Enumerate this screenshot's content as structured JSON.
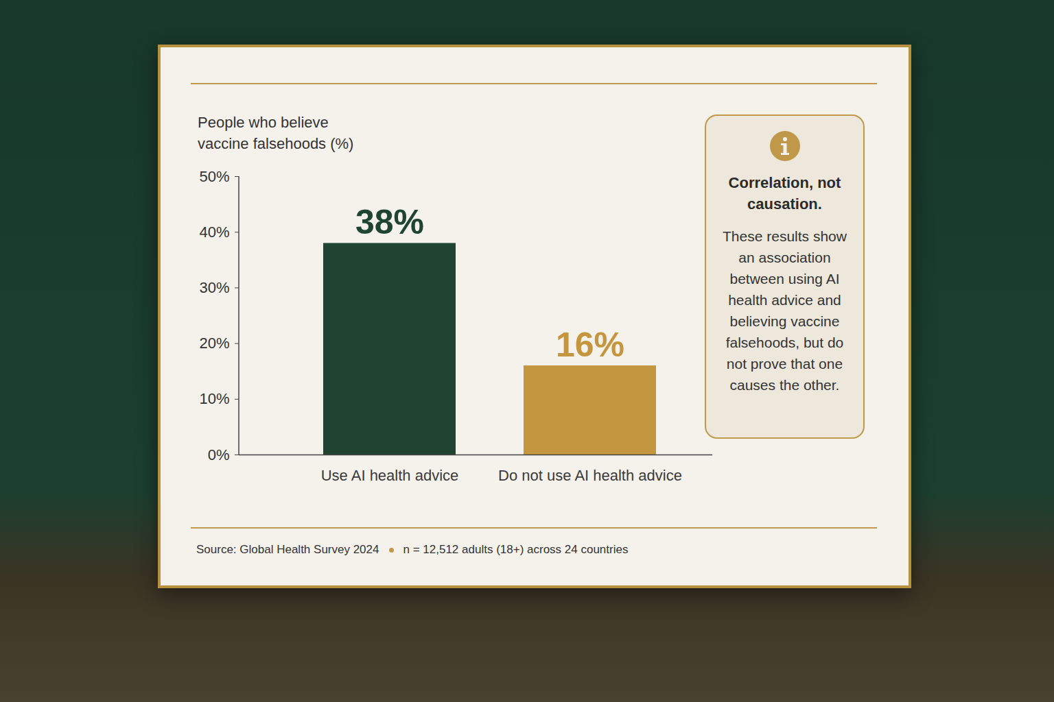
{
  "chart_data": {
    "type": "bar",
    "y_label": "People who believe vaccine falsehoods (%)",
    "categories": [
      "Use AI health advice",
      "Do not use AI health advice"
    ],
    "values": [
      38,
      16
    ],
    "value_labels": [
      "38%",
      "16%"
    ],
    "colors": [
      "#1f4532",
      "#c4963f"
    ],
    "ylim": [
      0,
      50
    ],
    "yticks": [
      {
        "value": 0,
        "label": "0%"
      },
      {
        "value": 10,
        "label": "10%"
      },
      {
        "value": 20,
        "label": "20%"
      },
      {
        "value": 30,
        "label": "30%"
      },
      {
        "value": 40,
        "label": "40%"
      },
      {
        "value": 50,
        "label": "50%"
      }
    ],
    "grid": false,
    "data_labels": true,
    "annotation": {
      "title": "Correlation, not causation.",
      "text": "These results show an association between using AI health advice and believing vaccine falsehoods, but do not prove that one causes the other."
    },
    "source": "Source: Global Health Survey 2024",
    "sample": "n = 12,512 adults (18+) across 24 countries"
  }
}
